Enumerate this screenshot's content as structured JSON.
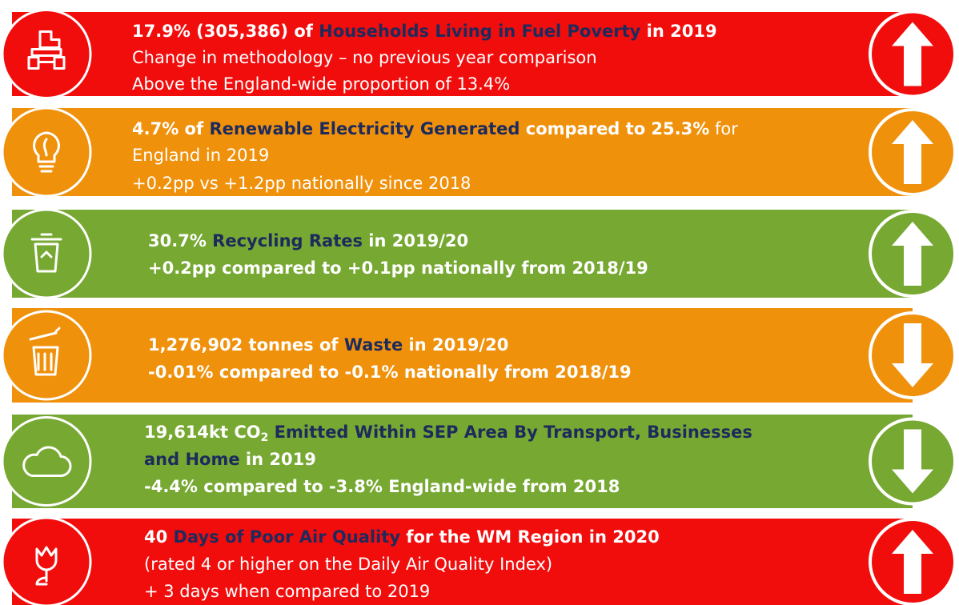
{
  "rows": [
    {
      "color": "#f20d0d",
      "arrow": "up",
      "lines": [
        [
          {
            "text": "17.9% (305,386) of ",
            "style": "b"
          },
          {
            "text": "Households Living in Fuel Poverty",
            "style": "n"
          },
          {
            "text": " in 2019",
            "style": "b"
          }
        ],
        [
          {
            "text": "Change in methodology – no previous year comparison",
            "style": "r"
          }
        ],
        [
          {
            "text": "Above the England-wide proportion of 13.4%",
            "style": "r"
          }
        ]
      ]
    },
    {
      "color": "#f0910c",
      "arrow": "up",
      "lines": [
        [
          {
            "text": "4.7% of ",
            "style": "b"
          },
          {
            "text": "Renewable Electricity Generated",
            "style": "n"
          },
          {
            "text": " compared to 25.3%",
            "style": "b"
          },
          {
            "text": " for",
            "style": "r"
          }
        ],
        [
          {
            "text": "England in 2019",
            "style": "r"
          }
        ],
        [
          {
            "text": "+0.2pp vs +1.2pp nationally since 2018",
            "style": "r"
          }
        ]
      ]
    },
    {
      "color": "#76a832",
      "arrow": "up",
      "lines": [
        [
          {
            "text": "30.7% ",
            "style": "b"
          },
          {
            "text": "Recycling Rates",
            "style": "n"
          },
          {
            "text": " in 2019/20",
            "style": "b"
          }
        ],
        [
          {
            "text": "+0.2pp compared to +0.1pp nationally from 2018/19",
            "style": "b"
          }
        ]
      ]
    },
    {
      "color": "#f0910c",
      "arrow": "down",
      "lines": [
        [
          {
            "text": "1,276,902 tonnes of ",
            "style": "b"
          },
          {
            "text": "Waste",
            "style": "n"
          },
          {
            "text": " in 2019/20",
            "style": "b"
          }
        ],
        [
          {
            "text": "-0.01% compared to -0.1% nationally from 2018/19",
            "style": "b"
          }
        ]
      ]
    },
    {
      "color": "#76a832",
      "arrow": "down",
      "lines": [
        [
          {
            "text": "19,614kt CO",
            "style": "b"
          },
          {
            "text": "2",
            "style": "sub"
          },
          {
            "text": " Emitted Within SEP Area By Transport, Businesses",
            "style": "n"
          }
        ],
        [
          {
            "text": "and Home",
            "style": "n"
          },
          {
            "text": " in 2019",
            "style": "b"
          }
        ],
        [
          {
            "text": "-4.4% compared to -3.8% England-wide from 2018",
            "style": "b"
          }
        ]
      ]
    },
    {
      "color": "#f20d0d",
      "arrow": "up",
      "lines": [
        [
          {
            "text": "40 ",
            "style": "b"
          },
          {
            "text": "Days of Poor Air Quality",
            "style": "n"
          },
          {
            "text": " for the WM Region in 2020",
            "style": "b"
          }
        ],
        [
          {
            "text": "(rated 4 or higher on the Daily Air Quality Index)",
            "style": "r"
          }
        ],
        [
          {
            "text": "+ 3 days when compared to 2019",
            "style": "r"
          }
        ]
      ]
    }
  ]
}
